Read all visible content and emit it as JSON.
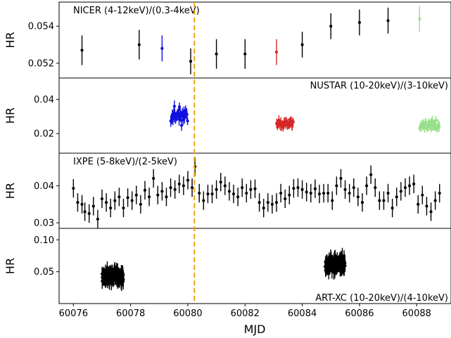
{
  "chart_data": {
    "type": "scatter",
    "shared_x": {
      "label": "MJD",
      "lim": [
        60075.5,
        60089.2
      ],
      "ticks": [
        60076,
        60078,
        60080,
        60082,
        60084,
        60086,
        60088
      ],
      "tick_labels": [
        "60076",
        "60078",
        "60080",
        "60082",
        "60084",
        "60086",
        "60088"
      ]
    },
    "vline": {
      "x": 60080.23,
      "color": "#f0a30a",
      "style": "dashed"
    },
    "panels": [
      {
        "id": "nicer",
        "annotation": "NICER (4-12keV)/(0.3-4keV)",
        "annotation_position": "top-left",
        "ylabel": "HR",
        "ylim": [
          0.0512,
          0.0553
        ],
        "yticks": [
          0.052,
          0.054
        ],
        "ytick_labels": [
          "0.052",
          "0.054"
        ],
        "series": [
          {
            "color": "#000000",
            "points": [
              [
                60076.3,
                0.0527,
                0.0008
              ],
              [
                60078.3,
                0.053,
                0.0008
              ],
              [
                60080.1,
                0.0521,
                0.0007
              ],
              [
                60081.0,
                0.0525,
                0.0008
              ],
              [
                60082.0,
                0.0525,
                0.0008
              ],
              [
                60084.0,
                0.053,
                0.0007
              ],
              [
                60085.0,
                0.054,
                0.0007
              ],
              [
                60086.0,
                0.0542,
                0.0007
              ],
              [
                60087.0,
                0.0543,
                0.0007
              ]
            ]
          },
          {
            "color": "#1010e0",
            "points": [
              [
                60079.1,
                0.0528,
                0.0007
              ]
            ]
          },
          {
            "color": "#d62728",
            "points": [
              [
                60083.1,
                0.0526,
                0.0007
              ]
            ]
          },
          {
            "color": "#98df8a",
            "points": [
              [
                60088.1,
                0.0544,
                0.0007
              ]
            ]
          }
        ]
      },
      {
        "id": "nustar",
        "annotation": "NUSTAR (10-20keV)/(3-10keV)",
        "annotation_position": "top-right",
        "ylabel": "HR",
        "ylim": [
          0.0085,
          0.0525
        ],
        "yticks": [
          0.02,
          0.04
        ],
        "ytick_labels": [
          "0.02",
          "0.04"
        ],
        "clusters": [
          {
            "color": "#1010e0",
            "x_range": [
              60079.4,
              60080.0
            ],
            "n": 38,
            "y_center": 0.031,
            "y_spread": 0.007,
            "err": 0.003,
            "seed": 11
          },
          {
            "color": "#d62728",
            "x_range": [
              60083.1,
              60083.7
            ],
            "n": 32,
            "y_center": 0.026,
            "y_spread": 0.004,
            "err": 0.0025,
            "seed": 23
          },
          {
            "color": "#98df8a",
            "x_range": [
              60088.1,
              60088.8
            ],
            "n": 32,
            "y_center": 0.025,
            "y_spread": 0.004,
            "err": 0.0025,
            "seed": 37
          }
        ]
      },
      {
        "id": "ixpe",
        "annotation": "IXPE (5-8keV)/(2-5keV)",
        "annotation_position": "top-left",
        "ylabel": "HR",
        "ylim": [
          0.0285,
          0.0488
        ],
        "yticks": [
          0.03,
          0.04
        ],
        "ytick_labels": [
          "0.03",
          "0.04"
        ],
        "series": [
          {
            "color": "#000000",
            "err": 0.0025,
            "points": [
              [
                60076.0,
                0.0393
              ],
              [
                60076.15,
                0.0355
              ],
              [
                60076.3,
                0.035
              ],
              [
                60076.4,
                0.033
              ],
              [
                60076.55,
                0.0325
              ],
              [
                60076.7,
                0.0345
              ],
              [
                60076.85,
                0.031
              ],
              [
                60077.0,
                0.0365
              ],
              [
                60077.15,
                0.0355
              ],
              [
                60077.3,
                0.034
              ],
              [
                60077.45,
                0.036
              ],
              [
                60077.6,
                0.037
              ],
              [
                60077.75,
                0.034
              ],
              [
                60077.9,
                0.0368
              ],
              [
                60078.05,
                0.036
              ],
              [
                60078.2,
                0.0375
              ],
              [
                60078.35,
                0.035
              ],
              [
                60078.5,
                0.0388
              ],
              [
                60078.65,
                0.037
              ],
              [
                60078.8,
                0.042
              ],
              [
                60078.95,
                0.0375
              ],
              [
                60079.1,
                0.0385
              ],
              [
                60079.25,
                0.037
              ],
              [
                60079.4,
                0.0395
              ],
              [
                60079.55,
                0.039
              ],
              [
                60079.7,
                0.0405
              ],
              [
                60079.85,
                0.04
              ],
              [
                60080.0,
                0.0415
              ],
              [
                60080.15,
                0.0395
              ],
              [
                60080.25,
                0.0452
              ],
              [
                60080.4,
                0.038
              ],
              [
                60080.55,
                0.036
              ],
              [
                60080.7,
                0.0378
              ],
              [
                60080.85,
                0.0378
              ],
              [
                60081.0,
                0.039
              ],
              [
                60081.15,
                0.041
              ],
              [
                60081.3,
                0.04
              ],
              [
                60081.45,
                0.0385
              ],
              [
                60081.6,
                0.0378
              ],
              [
                60081.75,
                0.037
              ],
              [
                60081.9,
                0.0395
              ],
              [
                60082.05,
                0.038
              ],
              [
                60082.2,
                0.039
              ],
              [
                60082.35,
                0.0392
              ],
              [
                60082.5,
                0.0355
              ],
              [
                60082.65,
                0.034
              ],
              [
                60082.8,
                0.0355
              ],
              [
                60082.95,
                0.035
              ],
              [
                60083.1,
                0.0355
              ],
              [
                60083.25,
                0.038
              ],
              [
                60083.4,
                0.0365
              ],
              [
                60083.55,
                0.0375
              ],
              [
                60083.7,
                0.0393
              ],
              [
                60083.85,
                0.0395
              ],
              [
                60084.0,
                0.039
              ],
              [
                60084.15,
                0.0383
              ],
              [
                60084.3,
                0.038
              ],
              [
                60084.45,
                0.0392
              ],
              [
                60084.6,
                0.0378
              ],
              [
                60084.75,
                0.038
              ],
              [
                60084.9,
                0.038
              ],
              [
                60085.05,
                0.036
              ],
              [
                60085.2,
                0.04
              ],
              [
                60085.35,
                0.042
              ],
              [
                60085.5,
                0.039
              ],
              [
                60085.65,
                0.038
              ],
              [
                60085.8,
                0.0395
              ],
              [
                60085.95,
                0.037
              ],
              [
                60086.1,
                0.0355
              ],
              [
                60086.25,
                0.04
              ],
              [
                60086.4,
                0.043
              ],
              [
                60086.55,
                0.0395
              ],
              [
                60086.7,
                0.036
              ],
              [
                60086.85,
                0.036
              ],
              [
                60087.0,
                0.038
              ],
              [
                60087.15,
                0.034
              ],
              [
                60087.3,
                0.037
              ],
              [
                60087.45,
                0.0385
              ],
              [
                60087.6,
                0.0395
              ],
              [
                60087.75,
                0.04
              ],
              [
                60087.9,
                0.0405
              ],
              [
                60088.05,
                0.035
              ],
              [
                60088.2,
                0.0375
              ],
              [
                60088.35,
                0.0345
              ],
              [
                60088.5,
                0.033
              ],
              [
                60088.65,
                0.036
              ],
              [
                60088.8,
                0.038
              ]
            ]
          }
        ]
      },
      {
        "id": "artxc",
        "annotation": "ART-XC (10-20keV)/(4-10keV)",
        "annotation_position": "bottom-right",
        "ylabel": "HR",
        "ylim": [
          0.0,
          0.118
        ],
        "yticks": [
          0.05,
          0.1
        ],
        "ytick_labels": [
          "0.05",
          "0.10"
        ],
        "clusters": [
          {
            "color": "#000000",
            "x_range": [
              60077.0,
              60077.75
            ],
            "n": 160,
            "y_center": 0.043,
            "y_spread": 0.016,
            "err": 0.01,
            "seed": 5
          },
          {
            "color": "#000000",
            "x_range": [
              60084.8,
              60085.5
            ],
            "n": 160,
            "y_center": 0.062,
            "y_spread": 0.016,
            "err": 0.01,
            "seed": 9
          }
        ]
      }
    ]
  }
}
